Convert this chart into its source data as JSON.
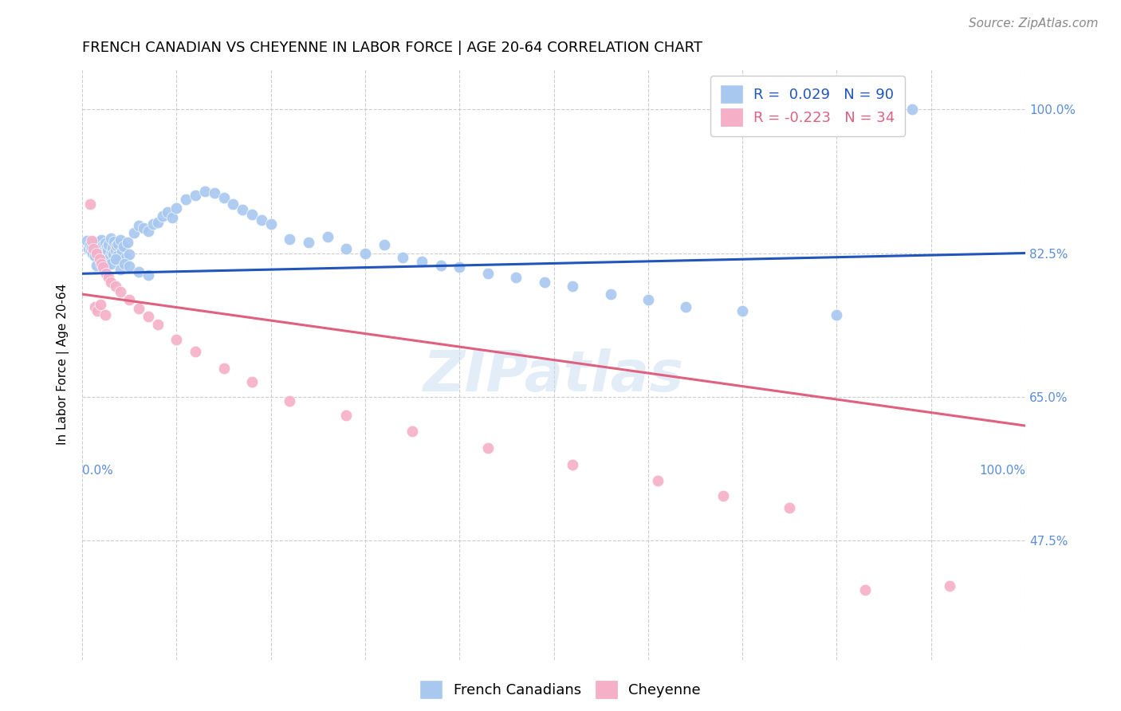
{
  "title": "FRENCH CANADIAN VS CHEYENNE IN LABOR FORCE | AGE 20-64 CORRELATION CHART",
  "source": "Source: ZipAtlas.com",
  "ylabel": "In Labor Force | Age 20-64",
  "xlim": [
    0.0,
    1.0
  ],
  "ylim": [
    0.33,
    1.05
  ],
  "yticks": [
    0.475,
    0.65,
    0.825,
    1.0
  ],
  "ytick_labels": [
    "47.5%",
    "65.0%",
    "82.5%",
    "100.0%"
  ],
  "xtick_left_label": "0.0%",
  "xtick_right_label": "100.0%",
  "blue_color": "#a8c8f0",
  "blue_line_color": "#2255bb",
  "pink_color": "#f5b0c8",
  "pink_line_color": "#e06080",
  "legend_blue_R": "0.029",
  "legend_blue_N": "90",
  "legend_pink_R": "-0.223",
  "legend_pink_N": "34",
  "watermark": "ZIPatlas",
  "legend_label_blue": "French Canadians",
  "legend_label_pink": "Cheyenne",
  "blue_scatter_x": [
    0.005,
    0.007,
    0.008,
    0.009,
    0.01,
    0.011,
    0.012,
    0.013,
    0.014,
    0.015,
    0.016,
    0.017,
    0.018,
    0.019,
    0.02,
    0.021,
    0.022,
    0.023,
    0.024,
    0.025,
    0.026,
    0.027,
    0.028,
    0.029,
    0.03,
    0.031,
    0.032,
    0.033,
    0.034,
    0.035,
    0.036,
    0.037,
    0.038,
    0.039,
    0.04,
    0.042,
    0.044,
    0.046,
    0.048,
    0.05,
    0.055,
    0.06,
    0.065,
    0.07,
    0.075,
    0.08,
    0.085,
    0.09,
    0.095,
    0.1,
    0.11,
    0.12,
    0.13,
    0.14,
    0.15,
    0.16,
    0.17,
    0.18,
    0.19,
    0.2,
    0.22,
    0.24,
    0.26,
    0.28,
    0.3,
    0.32,
    0.34,
    0.36,
    0.38,
    0.4,
    0.43,
    0.46,
    0.49,
    0.52,
    0.56,
    0.6,
    0.64,
    0.7,
    0.8,
    0.88,
    0.015,
    0.02,
    0.025,
    0.03,
    0.035,
    0.04,
    0.045,
    0.05,
    0.06,
    0.07
  ],
  "blue_scatter_y": [
    0.84,
    0.83,
    0.835,
    0.828,
    0.832,
    0.825,
    0.838,
    0.822,
    0.836,
    0.831,
    0.833,
    0.827,
    0.839,
    0.824,
    0.841,
    0.829,
    0.834,
    0.826,
    0.837,
    0.823,
    0.832,
    0.828,
    0.835,
    0.821,
    0.843,
    0.826,
    0.831,
    0.824,
    0.839,
    0.828,
    0.834,
    0.822,
    0.836,
    0.819,
    0.841,
    0.827,
    0.833,
    0.82,
    0.838,
    0.824,
    0.85,
    0.858,
    0.856,
    0.852,
    0.86,
    0.862,
    0.87,
    0.875,
    0.868,
    0.88,
    0.89,
    0.895,
    0.9,
    0.898,
    0.892,
    0.885,
    0.878,
    0.872,
    0.865,
    0.86,
    0.842,
    0.838,
    0.845,
    0.83,
    0.825,
    0.835,
    0.82,
    0.815,
    0.81,
    0.808,
    0.8,
    0.795,
    0.79,
    0.785,
    0.775,
    0.768,
    0.76,
    0.755,
    0.75,
    1.0,
    0.81,
    0.815,
    0.808,
    0.812,
    0.818,
    0.805,
    0.812,
    0.809,
    0.802,
    0.798
  ],
  "pink_scatter_x": [
    0.008,
    0.01,
    0.012,
    0.015,
    0.018,
    0.02,
    0.022,
    0.025,
    0.028,
    0.03,
    0.035,
    0.04,
    0.05,
    0.06,
    0.07,
    0.08,
    0.1,
    0.12,
    0.15,
    0.18,
    0.22,
    0.28,
    0.35,
    0.43,
    0.52,
    0.61,
    0.68,
    0.75,
    0.83,
    0.92,
    0.013,
    0.016,
    0.019,
    0.024
  ],
  "pink_scatter_y": [
    0.885,
    0.84,
    0.83,
    0.825,
    0.818,
    0.812,
    0.808,
    0.8,
    0.795,
    0.79,
    0.785,
    0.778,
    0.768,
    0.758,
    0.748,
    0.738,
    0.72,
    0.705,
    0.685,
    0.668,
    0.645,
    0.628,
    0.608,
    0.588,
    0.568,
    0.548,
    0.53,
    0.515,
    0.415,
    0.42,
    0.76,
    0.755,
    0.762,
    0.75
  ],
  "blue_trend_x": [
    0.0,
    1.0
  ],
  "blue_trend_y": [
    0.8,
    0.825
  ],
  "pink_trend_x": [
    0.0,
    1.0
  ],
  "pink_trend_y": [
    0.775,
    0.615
  ],
  "title_fontsize": 13,
  "axis_label_fontsize": 11,
  "tick_fontsize": 11,
  "legend_fontsize": 13,
  "source_fontsize": 11,
  "background_color": "#ffffff",
  "grid_color": "#cccccc",
  "tick_color": "#5b8dd9",
  "right_ytick_color": "#5b8dd9"
}
